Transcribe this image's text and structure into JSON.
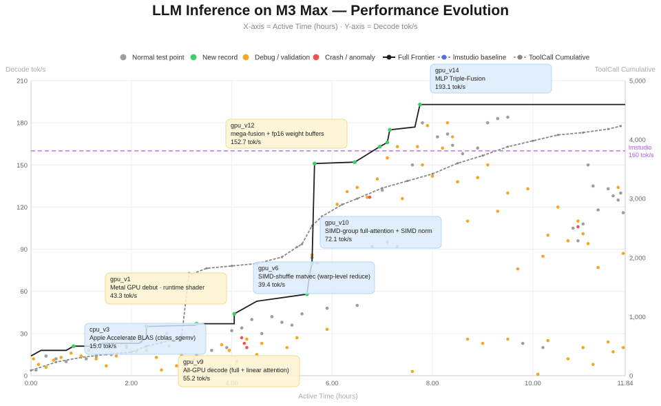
{
  "header": {
    "title": "LLM Inference on M3 Max — Performance Evolution",
    "subtitle": "X-axis = Active Time (hours) · Y-axis = Decode tok/s"
  },
  "chart_data": {
    "type": "scatter",
    "title": "LLM Inference on M3 Max — Performance Evolution",
    "subtitle": "X-axis = Active Time (hours) · Y-axis = Decode tok/s",
    "xlabel": "Active Time (hours)",
    "ylabel": "Decode tok/s",
    "y2label": "ToolCall Cumulative",
    "xlim": [
      0,
      11.84
    ],
    "ylim": [
      0,
      210
    ],
    "y2lim": [
      0,
      5000
    ],
    "x_ticks": [
      "0.00",
      "2.00",
      "4.00",
      "6.00",
      "8.00",
      "10.00",
      "11.84"
    ],
    "x_tick_values": [
      0,
      2,
      4,
      6,
      8,
      10,
      11.84
    ],
    "y_ticks": [
      0,
      30,
      60,
      90,
      120,
      150,
      180,
      210
    ],
    "y2_ticks": [
      "0",
      "1,000",
      "2,000",
      "3,000",
      "4,000",
      "5,000"
    ],
    "y2_tick_values": [
      0,
      1000,
      2000,
      3000,
      4000,
      5000
    ],
    "grid": true,
    "legend_position": "top",
    "legend": [
      {
        "label": "Normal test point",
        "kind": "dot",
        "color": "#9e9e9e"
      },
      {
        "label": "New record",
        "kind": "dot",
        "color": "#3ecf6a"
      },
      {
        "label": "Debug / validation",
        "kind": "dot",
        "color": "#f5a623"
      },
      {
        "label": "Crash / anomaly",
        "kind": "dot",
        "color": "#ef5350"
      },
      {
        "label": "Full Frontier",
        "kind": "line-dot",
        "color": "#1e1e1e"
      },
      {
        "label": "lmstudio baseline",
        "kind": "dash-dot",
        "color": "#5b6fd6"
      },
      {
        "label": "ToolCall Cumulative",
        "kind": "dash-dot",
        "color": "#888888"
      }
    ],
    "baseline": {
      "label_line1": "lmstudio",
      "label_line2": "160 tok/s",
      "value": 160,
      "color": "#b15ae6"
    },
    "series": [
      {
        "name": "Full Frontier",
        "color": "#1e1e1e",
        "points": [
          [
            0,
            14
          ],
          [
            0.2,
            18
          ],
          [
            0.7,
            18
          ],
          [
            0.85,
            21
          ],
          [
            1.2,
            21
          ],
          [
            1.45,
            23
          ],
          [
            2.15,
            23
          ],
          [
            2.3,
            27
          ],
          [
            2.3,
            33
          ],
          [
            2.3,
            35
          ],
          [
            3.3,
            36
          ],
          [
            3.3,
            37
          ],
          [
            4.05,
            37
          ],
          [
            4.05,
            44
          ],
          [
            4.5,
            53
          ],
          [
            5.3,
            57
          ],
          [
            5.5,
            58
          ],
          [
            5.55,
            72
          ],
          [
            5.6,
            80
          ],
          [
            5.65,
            151
          ],
          [
            6.45,
            152
          ],
          [
            6.95,
            163
          ],
          [
            7.1,
            166
          ],
          [
            7.15,
            175
          ],
          [
            7.65,
            177
          ],
          [
            7.75,
            193
          ],
          [
            11.84,
            193
          ]
        ]
      },
      {
        "name": "New record",
        "color": "#3ecf6a",
        "points": [
          [
            0.85,
            21
          ],
          [
            2.3,
            35
          ],
          [
            3.3,
            37
          ],
          [
            4.05,
            44
          ],
          [
            5.5,
            58
          ],
          [
            5.55,
            72
          ],
          [
            5.6,
            80
          ],
          [
            5.65,
            151
          ],
          [
            6.45,
            152
          ],
          [
            6.95,
            163
          ],
          [
            7.1,
            166
          ],
          [
            7.15,
            175
          ],
          [
            7.75,
            193
          ]
        ]
      },
      {
        "name": "ToolCall Cumulative",
        "color": "#888888",
        "points": [
          [
            0,
            90
          ],
          [
            0.5,
            230
          ],
          [
            1.0,
            310
          ],
          [
            1.5,
            360
          ],
          [
            2.0,
            400
          ],
          [
            2.3,
            500
          ],
          [
            2.6,
            560
          ],
          [
            3.0,
            650
          ],
          [
            3.15,
            1740
          ],
          [
            3.2,
            1720
          ],
          [
            3.5,
            1820
          ],
          [
            4.0,
            1860
          ],
          [
            4.5,
            1900
          ],
          [
            5.0,
            2010
          ],
          [
            5.3,
            2180
          ],
          [
            5.4,
            2230
          ],
          [
            5.6,
            2540
          ],
          [
            5.8,
            2700
          ],
          [
            6.2,
            2900
          ],
          [
            6.5,
            3000
          ],
          [
            7.0,
            3180
          ],
          [
            7.5,
            3300
          ],
          [
            8.0,
            3420
          ],
          [
            8.5,
            3600
          ],
          [
            9.0,
            3730
          ],
          [
            9.5,
            3880
          ],
          [
            10.0,
            3980
          ],
          [
            10.5,
            4080
          ],
          [
            11.0,
            4120
          ],
          [
            11.5,
            4180
          ],
          [
            11.75,
            4230
          ]
        ]
      },
      {
        "name": "Normal test point",
        "color": "#9e9e9e",
        "points": [
          [
            0.1,
            4
          ],
          [
            0.3,
            14
          ],
          [
            0.5,
            12
          ],
          [
            0.7,
            10
          ],
          [
            1.1,
            12
          ],
          [
            1.3,
            14
          ],
          [
            1.6,
            15
          ],
          [
            1.9,
            21
          ],
          [
            2.0,
            25
          ],
          [
            2.2,
            24
          ],
          [
            2.7,
            30
          ],
          [
            3.0,
            28
          ],
          [
            3.3,
            15
          ],
          [
            3.6,
            18
          ],
          [
            3.9,
            20
          ],
          [
            4.0,
            32
          ],
          [
            4.2,
            34
          ],
          [
            4.4,
            40
          ],
          [
            4.6,
            30
          ],
          [
            4.8,
            42
          ],
          [
            5.0,
            38
          ],
          [
            5.2,
            36
          ],
          [
            5.4,
            44
          ],
          [
            5.6,
            84
          ],
          [
            5.7,
            80
          ],
          [
            5.9,
            48
          ],
          [
            6.5,
            50
          ],
          [
            6.8,
            92
          ],
          [
            7.0,
            132
          ],
          [
            7.1,
            95
          ],
          [
            7.6,
            150
          ],
          [
            7.8,
            180
          ],
          [
            8.1,
            170
          ],
          [
            8.3,
            172
          ],
          [
            8.4,
            164
          ],
          [
            8.6,
            158
          ],
          [
            8.9,
            162
          ],
          [
            9.1,
            180
          ],
          [
            9.3,
            183
          ],
          [
            9.5,
            184
          ],
          [
            9.8,
            23
          ],
          [
            10.2,
            20
          ],
          [
            10.8,
            105
          ],
          [
            10.9,
            96
          ],
          [
            11.0,
            108
          ],
          [
            11.1,
            150
          ],
          [
            11.2,
            135
          ],
          [
            11.3,
            118
          ],
          [
            11.5,
            133
          ],
          [
            11.6,
            128
          ],
          [
            11.7,
            125
          ],
          [
            11.75,
            130
          ],
          [
            11.8,
            116
          ],
          [
            7.3,
            92
          ]
        ]
      },
      {
        "name": "Debug / validation",
        "color": "#f5a623",
        "points": [
          [
            0.05,
            12
          ],
          [
            0.15,
            8
          ],
          [
            0.3,
            6
          ],
          [
            0.45,
            11
          ],
          [
            0.6,
            13
          ],
          [
            0.8,
            16
          ],
          [
            1.0,
            14
          ],
          [
            1.15,
            18
          ],
          [
            1.3,
            12
          ],
          [
            1.5,
            7
          ],
          [
            1.7,
            14
          ],
          [
            1.9,
            20
          ],
          [
            2.1,
            17
          ],
          [
            2.3,
            18
          ],
          [
            2.5,
            13
          ],
          [
            2.6,
            4
          ],
          [
            2.75,
            21
          ],
          [
            2.9,
            7
          ],
          [
            3.0,
            15
          ],
          [
            3.1,
            3
          ],
          [
            3.25,
            12
          ],
          [
            3.4,
            9
          ],
          [
            3.6,
            6
          ],
          [
            3.8,
            22
          ],
          [
            3.95,
            18
          ],
          [
            4.1,
            10
          ],
          [
            4.3,
            26
          ],
          [
            4.5,
            15
          ],
          [
            4.6,
            23
          ],
          [
            4.8,
            5
          ],
          [
            5.1,
            20
          ],
          [
            5.3,
            27
          ],
          [
            5.6,
            86
          ],
          [
            5.9,
            33
          ],
          [
            6.1,
            122
          ],
          [
            6.3,
            131
          ],
          [
            6.5,
            134
          ],
          [
            6.7,
            127
          ],
          [
            6.9,
            140
          ],
          [
            7.1,
            155
          ],
          [
            7.3,
            163
          ],
          [
            7.4,
            126
          ],
          [
            7.6,
            3
          ],
          [
            7.7,
            163
          ],
          [
            7.8,
            150
          ],
          [
            7.9,
            178
          ],
          [
            8.0,
            142
          ],
          [
            8.2,
            162
          ],
          [
            8.4,
            170
          ],
          [
            8.5,
            138
          ],
          [
            8.7,
            110
          ],
          [
            8.9,
            141
          ],
          [
            9.1,
            150
          ],
          [
            9.3,
            117
          ],
          [
            9.5,
            130
          ],
          [
            9.7,
            76
          ],
          [
            9.9,
            133
          ],
          [
            10.1,
            1
          ],
          [
            10.2,
            85
          ],
          [
            10.3,
            100
          ],
          [
            10.5,
            120
          ],
          [
            10.7,
            96
          ],
          [
            10.9,
            110
          ],
          [
            11.0,
            101
          ],
          [
            11.1,
            94
          ],
          [
            11.3,
            77
          ],
          [
            11.5,
            24
          ],
          [
            11.6,
            17
          ],
          [
            11.7,
            134
          ],
          [
            11.8,
            87
          ],
          [
            8.3,
            180
          ],
          [
            8.5,
            138
          ],
          [
            8.7,
            26
          ],
          [
            9.0,
            23
          ],
          [
            9.5,
            26
          ],
          [
            10.3,
            25
          ],
          [
            10.7,
            12
          ],
          [
            11.0,
            20
          ],
          [
            11.2,
            8
          ],
          [
            11.8,
            20
          ]
        ]
      },
      {
        "name": "Crash / anomaly",
        "color": "#ef5350",
        "points": [
          [
            4.2,
            27
          ],
          [
            4.25,
            23
          ],
          [
            4.3,
            20
          ],
          [
            6.75,
            127
          ],
          [
            10.9,
            106
          ]
        ]
      }
    ],
    "annotations": [
      {
        "name": "gpu_v14",
        "desc": "MLP Triple-Fusion",
        "value": "193.1 tok/s",
        "style": "blue"
      },
      {
        "name": "gpu_v12",
        "desc": "mega-fusion + fp16 weight buffers",
        "value": "152.7 tok/s",
        "style": "yellow"
      },
      {
        "name": "gpu_v10",
        "desc": "SIMD-group full-attention + SIMD norm",
        "value": "72.1 tok/s",
        "style": "blue"
      },
      {
        "name": "gpu_v6",
        "desc": "SIMD-shuffle matvec (warp-level reduce)",
        "value": "39.4 tok/s",
        "style": "blue"
      },
      {
        "name": "gpu_v1",
        "desc": "Metal GPU debut · runtime shader",
        "value": "43.3 tok/s",
        "style": "yellow"
      },
      {
        "name": "cpu_v3",
        "desc": "Apple Accelerate BLAS (cblas_sgemv)",
        "value": "15.0 tok/s",
        "style": "blue"
      },
      {
        "name": "gpu_v9",
        "desc": "All-GPU decode (full + linear attention)",
        "value": "55.2 tok/s",
        "style": "yellow"
      }
    ]
  }
}
